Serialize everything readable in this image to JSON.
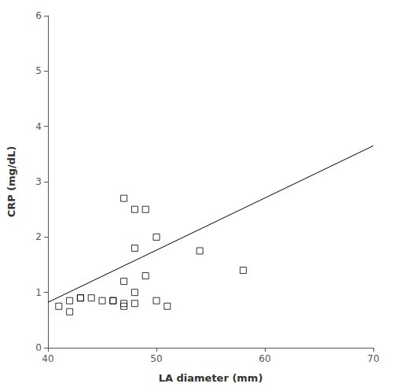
{
  "chart_data": {
    "type": "scatter",
    "xlabel": "LA diameter (mm)",
    "ylabel": "CRP (mg/dL)",
    "series": [
      {
        "type": "scatter",
        "marker": "square",
        "color": "#000000",
        "x": [
          41,
          42,
          42,
          43,
          43,
          44,
          45,
          46,
          46,
          47,
          47,
          47,
          47,
          48,
          48,
          48,
          48,
          49,
          49,
          50,
          50,
          51,
          54,
          58
        ],
        "values": [
          0.75,
          0.85,
          0.65,
          0.9,
          0.9,
          0.9,
          0.85,
          0.85,
          0.85,
          2.7,
          1.2,
          0.8,
          0.75,
          2.5,
          1.8,
          1.0,
          0.8,
          2.5,
          1.3,
          2.0,
          0.85,
          0.75,
          1.75,
          1.4
        ]
      },
      {
        "type": "line",
        "color": "#000000",
        "x": [
          40,
          70
        ],
        "values": [
          0.82,
          3.65
        ]
      }
    ],
    "xlim": [
      40,
      70
    ],
    "ylim": [
      0,
      6
    ],
    "xticks": [
      40,
      50,
      60,
      70
    ],
    "yticks": [
      0,
      1,
      2,
      3,
      4,
      5,
      6
    ],
    "grid": false
  }
}
